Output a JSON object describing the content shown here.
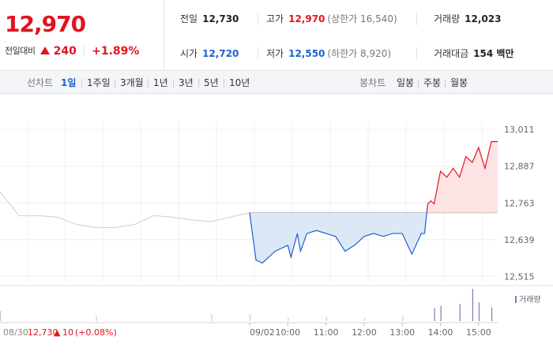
{
  "quote": {
    "price": "12,970",
    "change_label": "전일대비",
    "change_value": "240",
    "change_rate": "+1.89%",
    "stats": {
      "prev_close": {
        "label": "전일",
        "value": "12,730"
      },
      "high": {
        "label": "고가",
        "value": "12,970",
        "sub": "(상한가 16,540)"
      },
      "volume": {
        "label": "거래량",
        "value": "12,023"
      },
      "open": {
        "label": "시가",
        "value": "12,720"
      },
      "low": {
        "label": "저가",
        "value": "12,550",
        "sub": "(하한가 8,920)"
      },
      "amount": {
        "label": "거래대금",
        "value": "154 백만"
      }
    }
  },
  "period_bar": {
    "line_label": "선차트",
    "line_periods": [
      "1일",
      "1주일",
      "3개월",
      "1년",
      "3년",
      "5년",
      "10년"
    ],
    "active_period": "1일",
    "candle_label": "봉차트",
    "candle_periods": [
      "일봉",
      "주봉",
      "월봉"
    ]
  },
  "colors": {
    "up": "#e1141e",
    "down": "#1d5fd1",
    "up_fill": "#fde3e3",
    "down_fill": "#dde8f7",
    "prev_day_line": "#cfcfcf",
    "volume_bar": "#c9c9c9",
    "volume_bar_highlight": "#8a74b5"
  },
  "chart_data": {
    "type": "line",
    "base_price": 12730,
    "ylim": [
      12500,
      13030
    ],
    "y_ticks": [
      "13,011",
      "12,887",
      "12,763",
      "12,639",
      "12,515"
    ],
    "x_ticks": [
      "09/02",
      "10:00",
      "11:00",
      "12:00",
      "13:00",
      "14:00",
      "15:00"
    ],
    "volume_legend": "거래량",
    "prev_day_label": {
      "date": "08/30",
      "price": "12,730",
      "change": "10",
      "rate": "(+0.08%)"
    },
    "prev_day_series": {
      "name": "",
      "x": [
        "08/30 09:00",
        "08/30 09:30",
        "08/30 10:00",
        "08/30 10:30",
        "08/30 11:00",
        "08/30 11:30",
        "08/30 12:00",
        "08/30 12:30",
        "08/30 13:00",
        "08/30 13:30",
        "08/30 14:00",
        "08/30 14:30",
        "08/30 15:00",
        "08/30 15:30"
      ],
      "y": [
        12800,
        12720,
        12720,
        12715,
        12690,
        12680,
        12680,
        12690,
        12720,
        12715,
        12705,
        12700,
        12715,
        12730
      ]
    },
    "series": [
      {
        "name": "",
        "x": [
          "09:00",
          "09:10",
          "09:20",
          "09:40",
          "10:00",
          "10:05",
          "10:15",
          "10:20",
          "10:30",
          "10:45",
          "11:00",
          "11:15",
          "11:30",
          "11:45",
          "12:00",
          "12:15",
          "12:30",
          "12:45",
          "13:00",
          "13:15",
          "13:30",
          "13:35",
          "13:40",
          "13:45",
          "13:50",
          "14:00",
          "14:10",
          "14:20",
          "14:30",
          "14:40",
          "14:50",
          "15:00",
          "15:10",
          "15:20",
          "15:30"
        ],
        "y": [
          12730,
          12570,
          12560,
          12600,
          12620,
          12580,
          12660,
          12600,
          12660,
          12670,
          12660,
          12650,
          12600,
          12620,
          12650,
          12660,
          12650,
          12660,
          12660,
          12590,
          12660,
          12660,
          12760,
          12770,
          12760,
          12870,
          12850,
          12880,
          12850,
          12920,
          12900,
          12950,
          12880,
          12970,
          12970
        ]
      }
    ],
    "volume": {
      "x": [
        "08/30 09:00",
        "08/30 11:30",
        "08/30 14:30",
        "09:00",
        "10:00",
        "11:00",
        "12:00",
        "13:00",
        "13:50",
        "14:00",
        "14:30",
        "14:50",
        "15:00",
        "15:20"
      ],
      "values": [
        12,
        6,
        8,
        8,
        4,
        5,
        4,
        6,
        15,
        18,
        20,
        38,
        22,
        16
      ]
    }
  }
}
